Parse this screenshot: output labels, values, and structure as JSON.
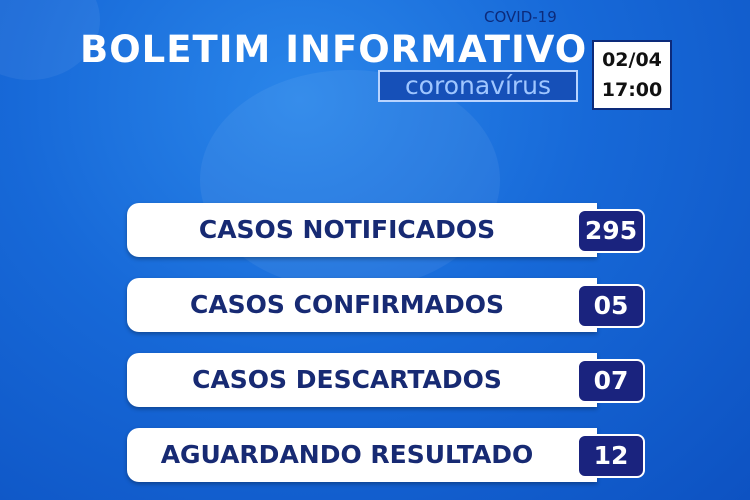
{
  "header": {
    "tag": "COVID-19",
    "title": "BOLETIM INFORMATIVO",
    "subtitle": "coronavírus",
    "date": "02/04",
    "time": "17:00"
  },
  "items": [
    {
      "label": "CASOS NOTIFICADOS",
      "value": "295"
    },
    {
      "label": "CASOS CONFIRMADOS",
      "value": "05"
    },
    {
      "label": "CASOS DESCARTADOS",
      "value": "07"
    },
    {
      "label": "AGUARDANDO RESULTADO",
      "value": "12"
    }
  ]
}
